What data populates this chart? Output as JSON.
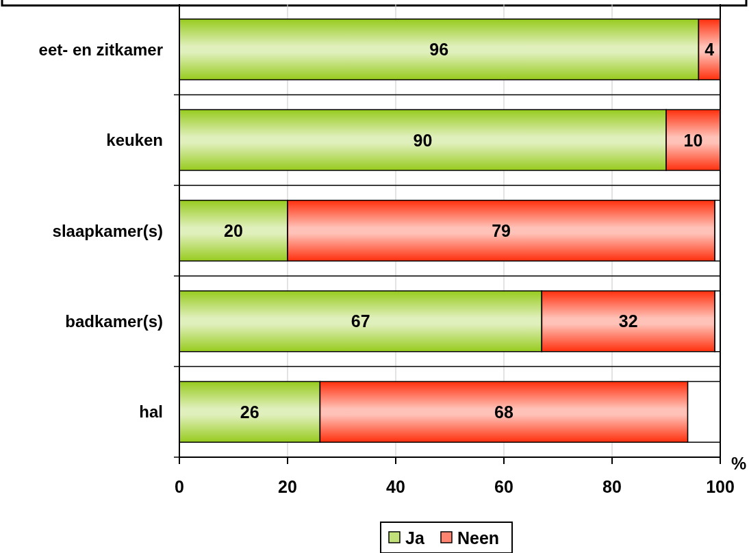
{
  "chart_data": {
    "type": "bar",
    "orientation": "horizontal",
    "stacked": true,
    "categories": [
      "eet- en zitkamer",
      "keuken",
      "slaapkamer(s)",
      "badkamer(s)",
      "hal"
    ],
    "series": [
      {
        "name": "Ja",
        "color": "#99cc22",
        "values": [
          96,
          90,
          20,
          67,
          26
        ],
        "value_labels": [
          "96",
          "90",
          "20",
          "67",
          "26"
        ]
      },
      {
        "name": "Neen",
        "color": "#ff3311",
        "values": [
          4,
          10,
          79,
          32,
          68
        ],
        "value_labels": [
          "4",
          "10",
          "79",
          "32",
          "68"
        ]
      },
      {
        "color": "#ffffff",
        "values": [
          0,
          0,
          1,
          1,
          6
        ]
      }
    ],
    "xlabel": "%",
    "xlim": [
      0,
      100
    ],
    "xticks": [
      0,
      20,
      40,
      60,
      80,
      100
    ],
    "grid": "x",
    "legend": "bottom"
  }
}
